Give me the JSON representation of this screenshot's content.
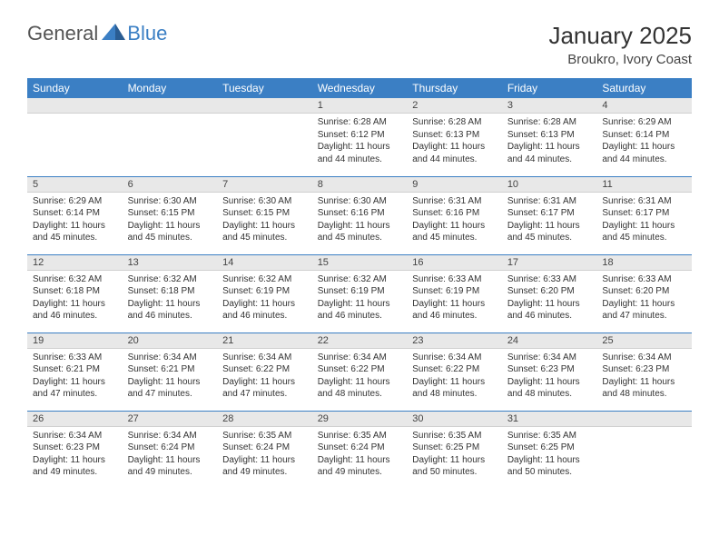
{
  "logo": {
    "word1": "General",
    "word2": "Blue"
  },
  "title": {
    "month": "January 2025",
    "location": "Broukro, Ivory Coast"
  },
  "colors": {
    "header_bg": "#3b7fc4",
    "header_text": "#ffffff",
    "daynum_bg": "#e8e8e8",
    "cell_border": "#3b7fc4",
    "page_bg": "#ffffff"
  },
  "day_headers": [
    "Sunday",
    "Monday",
    "Tuesday",
    "Wednesday",
    "Thursday",
    "Friday",
    "Saturday"
  ],
  "weeks": [
    [
      {
        "num": "",
        "lines": []
      },
      {
        "num": "",
        "lines": []
      },
      {
        "num": "",
        "lines": []
      },
      {
        "num": "1",
        "lines": [
          "Sunrise: 6:28 AM",
          "Sunset: 6:12 PM",
          "Daylight: 11 hours and 44 minutes."
        ]
      },
      {
        "num": "2",
        "lines": [
          "Sunrise: 6:28 AM",
          "Sunset: 6:13 PM",
          "Daylight: 11 hours and 44 minutes."
        ]
      },
      {
        "num": "3",
        "lines": [
          "Sunrise: 6:28 AM",
          "Sunset: 6:13 PM",
          "Daylight: 11 hours and 44 minutes."
        ]
      },
      {
        "num": "4",
        "lines": [
          "Sunrise: 6:29 AM",
          "Sunset: 6:14 PM",
          "Daylight: 11 hours and 44 minutes."
        ]
      }
    ],
    [
      {
        "num": "5",
        "lines": [
          "Sunrise: 6:29 AM",
          "Sunset: 6:14 PM",
          "Daylight: 11 hours and 45 minutes."
        ]
      },
      {
        "num": "6",
        "lines": [
          "Sunrise: 6:30 AM",
          "Sunset: 6:15 PM",
          "Daylight: 11 hours and 45 minutes."
        ]
      },
      {
        "num": "7",
        "lines": [
          "Sunrise: 6:30 AM",
          "Sunset: 6:15 PM",
          "Daylight: 11 hours and 45 minutes."
        ]
      },
      {
        "num": "8",
        "lines": [
          "Sunrise: 6:30 AM",
          "Sunset: 6:16 PM",
          "Daylight: 11 hours and 45 minutes."
        ]
      },
      {
        "num": "9",
        "lines": [
          "Sunrise: 6:31 AM",
          "Sunset: 6:16 PM",
          "Daylight: 11 hours and 45 minutes."
        ]
      },
      {
        "num": "10",
        "lines": [
          "Sunrise: 6:31 AM",
          "Sunset: 6:17 PM",
          "Daylight: 11 hours and 45 minutes."
        ]
      },
      {
        "num": "11",
        "lines": [
          "Sunrise: 6:31 AM",
          "Sunset: 6:17 PM",
          "Daylight: 11 hours and 45 minutes."
        ]
      }
    ],
    [
      {
        "num": "12",
        "lines": [
          "Sunrise: 6:32 AM",
          "Sunset: 6:18 PM",
          "Daylight: 11 hours and 46 minutes."
        ]
      },
      {
        "num": "13",
        "lines": [
          "Sunrise: 6:32 AM",
          "Sunset: 6:18 PM",
          "Daylight: 11 hours and 46 minutes."
        ]
      },
      {
        "num": "14",
        "lines": [
          "Sunrise: 6:32 AM",
          "Sunset: 6:19 PM",
          "Daylight: 11 hours and 46 minutes."
        ]
      },
      {
        "num": "15",
        "lines": [
          "Sunrise: 6:32 AM",
          "Sunset: 6:19 PM",
          "Daylight: 11 hours and 46 minutes."
        ]
      },
      {
        "num": "16",
        "lines": [
          "Sunrise: 6:33 AM",
          "Sunset: 6:19 PM",
          "Daylight: 11 hours and 46 minutes."
        ]
      },
      {
        "num": "17",
        "lines": [
          "Sunrise: 6:33 AM",
          "Sunset: 6:20 PM",
          "Daylight: 11 hours and 46 minutes."
        ]
      },
      {
        "num": "18",
        "lines": [
          "Sunrise: 6:33 AM",
          "Sunset: 6:20 PM",
          "Daylight: 11 hours and 47 minutes."
        ]
      }
    ],
    [
      {
        "num": "19",
        "lines": [
          "Sunrise: 6:33 AM",
          "Sunset: 6:21 PM",
          "Daylight: 11 hours and 47 minutes."
        ]
      },
      {
        "num": "20",
        "lines": [
          "Sunrise: 6:34 AM",
          "Sunset: 6:21 PM",
          "Daylight: 11 hours and 47 minutes."
        ]
      },
      {
        "num": "21",
        "lines": [
          "Sunrise: 6:34 AM",
          "Sunset: 6:22 PM",
          "Daylight: 11 hours and 47 minutes."
        ]
      },
      {
        "num": "22",
        "lines": [
          "Sunrise: 6:34 AM",
          "Sunset: 6:22 PM",
          "Daylight: 11 hours and 48 minutes."
        ]
      },
      {
        "num": "23",
        "lines": [
          "Sunrise: 6:34 AM",
          "Sunset: 6:22 PM",
          "Daylight: 11 hours and 48 minutes."
        ]
      },
      {
        "num": "24",
        "lines": [
          "Sunrise: 6:34 AM",
          "Sunset: 6:23 PM",
          "Daylight: 11 hours and 48 minutes."
        ]
      },
      {
        "num": "25",
        "lines": [
          "Sunrise: 6:34 AM",
          "Sunset: 6:23 PM",
          "Daylight: 11 hours and 48 minutes."
        ]
      }
    ],
    [
      {
        "num": "26",
        "lines": [
          "Sunrise: 6:34 AM",
          "Sunset: 6:23 PM",
          "Daylight: 11 hours and 49 minutes."
        ]
      },
      {
        "num": "27",
        "lines": [
          "Sunrise: 6:34 AM",
          "Sunset: 6:24 PM",
          "Daylight: 11 hours and 49 minutes."
        ]
      },
      {
        "num": "28",
        "lines": [
          "Sunrise: 6:35 AM",
          "Sunset: 6:24 PM",
          "Daylight: 11 hours and 49 minutes."
        ]
      },
      {
        "num": "29",
        "lines": [
          "Sunrise: 6:35 AM",
          "Sunset: 6:24 PM",
          "Daylight: 11 hours and 49 minutes."
        ]
      },
      {
        "num": "30",
        "lines": [
          "Sunrise: 6:35 AM",
          "Sunset: 6:25 PM",
          "Daylight: 11 hours and 50 minutes."
        ]
      },
      {
        "num": "31",
        "lines": [
          "Sunrise: 6:35 AM",
          "Sunset: 6:25 PM",
          "Daylight: 11 hours and 50 minutes."
        ]
      },
      {
        "num": "",
        "lines": []
      }
    ]
  ]
}
